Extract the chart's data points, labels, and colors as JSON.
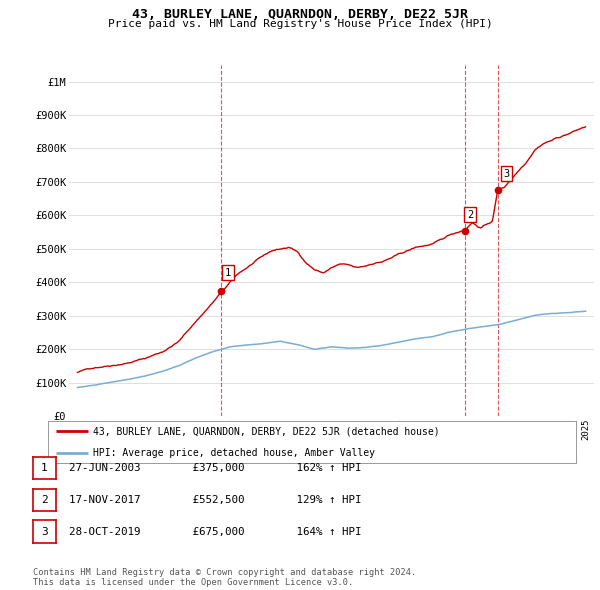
{
  "title": "43, BURLEY LANE, QUARNDON, DERBY, DE22 5JR",
  "subtitle": "Price paid vs. HM Land Registry's House Price Index (HPI)",
  "ylabel_ticks": [
    "£0",
    "£100K",
    "£200K",
    "£300K",
    "£400K",
    "£500K",
    "£600K",
    "£700K",
    "£800K",
    "£900K",
    "£1M"
  ],
  "ytick_values": [
    0,
    100000,
    200000,
    300000,
    400000,
    500000,
    600000,
    700000,
    800000,
    900000,
    1000000
  ],
  "ylim": [
    0,
    1050000
  ],
  "xlim_start": 1994.5,
  "xlim_end": 2025.5,
  "red_color": "#cc0000",
  "blue_color": "#7aadd4",
  "sale_points": [
    {
      "year": 2003.49,
      "price": 375000,
      "label": "1"
    },
    {
      "year": 2017.88,
      "price": 552500,
      "label": "2"
    },
    {
      "year": 2019.83,
      "price": 675000,
      "label": "3"
    }
  ],
  "vline_years": [
    2003.49,
    2017.88,
    2019.83
  ],
  "legend_line1": "43, BURLEY LANE, QUARNDON, DERBY, DE22 5JR (detached house)",
  "legend_line2": "HPI: Average price, detached house, Amber Valley",
  "table_rows": [
    {
      "num": "1",
      "date": "27-JUN-2003",
      "price": "£375,000",
      "hpi": "162% ↑ HPI"
    },
    {
      "num": "2",
      "date": "17-NOV-2017",
      "price": "£552,500",
      "hpi": "129% ↑ HPI"
    },
    {
      "num": "3",
      "date": "28-OCT-2019",
      "price": "£675,000",
      "hpi": "164% ↑ HPI"
    }
  ],
  "footnote": "Contains HM Land Registry data © Crown copyright and database right 2024.\nThis data is licensed under the Open Government Licence v3.0.",
  "background_color": "#ffffff",
  "grid_color": "#e0e0e0"
}
